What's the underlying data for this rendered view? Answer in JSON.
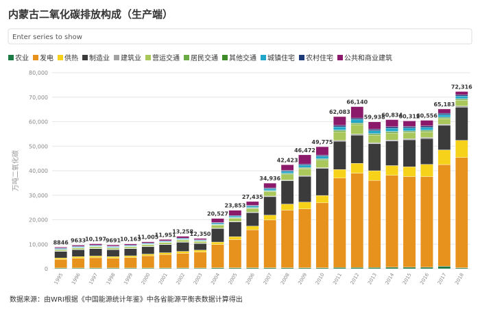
{
  "title": "内蒙古二氧化碳排放构成（生产端）",
  "search_placeholder": "Enter series to show",
  "source": "数据来源：由WRI根据《中国能源统计年鉴》中各省能源平衡表数据计算得出",
  "chart_data": {
    "type": "stacked-bar",
    "y_label": "万吨二氧化碳",
    "categories": [
      "1995",
      "1996",
      "1997",
      "1998",
      "1999",
      "2000",
      "2001",
      "2002",
      "2003",
      "2004",
      "2005",
      "2006",
      "2007",
      "2008",
      "2009",
      "2010",
      "2011",
      "2012",
      "2013",
      "2014",
      "2015",
      "2016",
      "2017",
      "2018"
    ],
    "ylim": [
      0,
      80000
    ],
    "yticks": [
      {
        "value": 0,
        "label": "0"
      },
      {
        "value": 10000,
        "label": "10,000"
      },
      {
        "value": 20000,
        "label": "20,000"
      },
      {
        "value": 30000,
        "label": "30,000"
      },
      {
        "value": 40000,
        "label": "40,000"
      },
      {
        "value": 50000,
        "label": "50,000"
      },
      {
        "value": 60000,
        "label": "60,000"
      },
      {
        "value": 70000,
        "label": "70,000"
      },
      {
        "value": 80000,
        "label": "80,000"
      }
    ],
    "grid": true,
    "series": [
      {
        "name": "农业",
        "color": "#1b7a45",
        "values": [
          300,
          300,
          300,
          300,
          300,
          300,
          300,
          300,
          300,
          400,
          400,
          400,
          400,
          400,
          400,
          400,
          500,
          500,
          500,
          600,
          600,
          600,
          1000,
          400
        ]
      },
      {
        "name": "发电",
        "color": "#e8921e",
        "values": [
          3500,
          4000,
          4200,
          4000,
          4300,
          5000,
          5500,
          6000,
          6500,
          9500,
          11500,
          15500,
          19500,
          23500,
          24000,
          26500,
          36500,
          38500,
          35500,
          37500,
          37000,
          37000,
          41500,
          45000
        ]
      },
      {
        "name": "供热",
        "color": "#f6d21b",
        "values": [
          600,
          650,
          700,
          650,
          700,
          700,
          750,
          800,
          800,
          1000,
          1200,
          1500,
          2000,
          2500,
          2800,
          3000,
          3500,
          4000,
          4000,
          4000,
          4000,
          5000,
          6000,
          7000
        ]
      },
      {
        "name": "制造业",
        "color": "#3b3b3b",
        "values": [
          2700,
          2800,
          3000,
          2800,
          2900,
          3000,
          3300,
          3700,
          2700,
          5500,
          6000,
          5500,
          7500,
          9500,
          10500,
          11000,
          11500,
          11500,
          11000,
          10000,
          11000,
          10500,
          10000,
          13500
        ]
      },
      {
        "name": "建筑业",
        "color": "#a3a3a3",
        "values": [
          150,
          150,
          150,
          150,
          150,
          150,
          150,
          150,
          150,
          200,
          200,
          200,
          250,
          300,
          300,
          350,
          400,
          450,
          450,
          450,
          450,
          450,
          450,
          500
        ]
      },
      {
        "name": "营运交通",
        "color": "#a9c75b",
        "values": [
          500,
          550,
          600,
          600,
          600,
          650,
          700,
          800,
          700,
          1200,
          1300,
          1500,
          1800,
          2200,
          2800,
          3000,
          3500,
          3800,
          3000,
          2800,
          2500,
          2300,
          2200,
          2300
        ]
      },
      {
        "name": "居民交通",
        "color": "#6bab45",
        "values": [
          100,
          100,
          100,
          100,
          100,
          100,
          100,
          100,
          100,
          150,
          200,
          200,
          250,
          300,
          300,
          350,
          400,
          450,
          400,
          400,
          400,
          400,
          400,
          400
        ]
      },
      {
        "name": "其他交通",
        "color": "#3f8a2a",
        "values": [
          100,
          100,
          100,
          100,
          100,
          100,
          100,
          100,
          100,
          150,
          150,
          200,
          200,
          250,
          250,
          300,
          300,
          300,
          300,
          300,
          300,
          300,
          300,
          300
        ]
      },
      {
        "name": "城镇住宅",
        "color": "#1fa6c9",
        "values": [
          300,
          300,
          300,
          300,
          300,
          300,
          300,
          350,
          300,
          500,
          500,
          600,
          700,
          800,
          900,
          1000,
          1300,
          1400,
          1200,
          1300,
          1200,
          1100,
          1000,
          1000
        ]
      },
      {
        "name": "农村住宅",
        "color": "#1f3a78",
        "values": [
          200,
          200,
          200,
          200,
          200,
          200,
          200,
          200,
          200,
          300,
          300,
          300,
          400,
          400,
          500,
          500,
          600,
          600,
          600,
          600,
          600,
          600,
          600,
          600
        ]
      },
      {
        "name": "公共和商业建筑",
        "color": "#8b1a6b",
        "values": [
          396,
          483,
          547,
          491,
          513,
          505,
          551,
          758,
          500,
          1627,
          2103,
          1535,
          1936,
          2273,
          3722,
          3375,
          3583,
          4640,
          2988,
          2884,
          2262,
          2306,
          1733,
          1316
        ]
      }
    ],
    "totals": {
      "values": [
        8846,
        9633,
        10197,
        9691,
        10163,
        11005,
        11951,
        13258,
        12350,
        20527,
        23853,
        27435,
        34936,
        42423,
        46472,
        49775,
        62083,
        66140,
        59938,
        60834,
        60312,
        60556,
        65183,
        72316
      ],
      "value_labels": [
        "8846",
        "9633",
        "10,197",
        "9691",
        "10,163",
        "11,005",
        "11,951",
        "13,258",
        "12,350",
        "20,527",
        "23,853",
        "27,435",
        "34,936",
        "42,423",
        "46,472",
        "49,775",
        "62,083",
        "66,140",
        "59,938",
        "60,834",
        "60,312",
        "60,556",
        "65,183",
        "72,316"
      ]
    }
  }
}
